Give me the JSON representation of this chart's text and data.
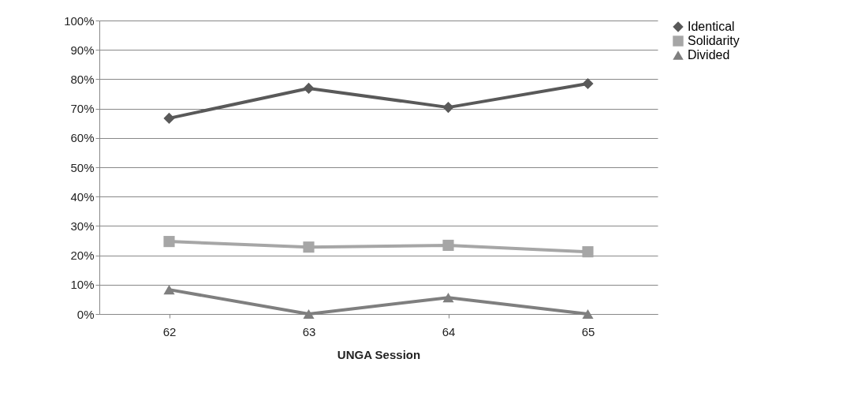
{
  "chart_data": {
    "type": "line",
    "xlabel": "UNGA Session",
    "categories": [
      "62",
      "63",
      "64",
      "65"
    ],
    "series": [
      {
        "name": "Identical",
        "color": "#595959",
        "marker": "diamond",
        "values": [
          66.7,
          76.9,
          70.4,
          78.5
        ]
      },
      {
        "name": "Solidarity",
        "color": "#a6a6a6",
        "marker": "square",
        "values": [
          24.7,
          22.8,
          23.4,
          21.2
        ]
      },
      {
        "name": "Divided",
        "color": "#7f7f7f",
        "marker": "triangle",
        "values": [
          8.3,
          0,
          5.6,
          0
        ]
      }
    ],
    "ylim": [
      0,
      100
    ],
    "yticks": [
      {
        "value": 0,
        "label": "0%"
      },
      {
        "value": 10,
        "label": "10%"
      },
      {
        "value": 20,
        "label": "20%"
      },
      {
        "value": 30,
        "label": "30%"
      },
      {
        "value": 40,
        "label": "40%"
      },
      {
        "value": 50,
        "label": "50%"
      },
      {
        "value": 60,
        "label": "60%"
      },
      {
        "value": 70,
        "label": "70%"
      },
      {
        "value": 80,
        "label": "80%"
      },
      {
        "value": 90,
        "label": "90%"
      },
      {
        "value": 100,
        "label": "100%"
      }
    ],
    "grid": "y",
    "legend": "right",
    "line_style": "solid"
  }
}
